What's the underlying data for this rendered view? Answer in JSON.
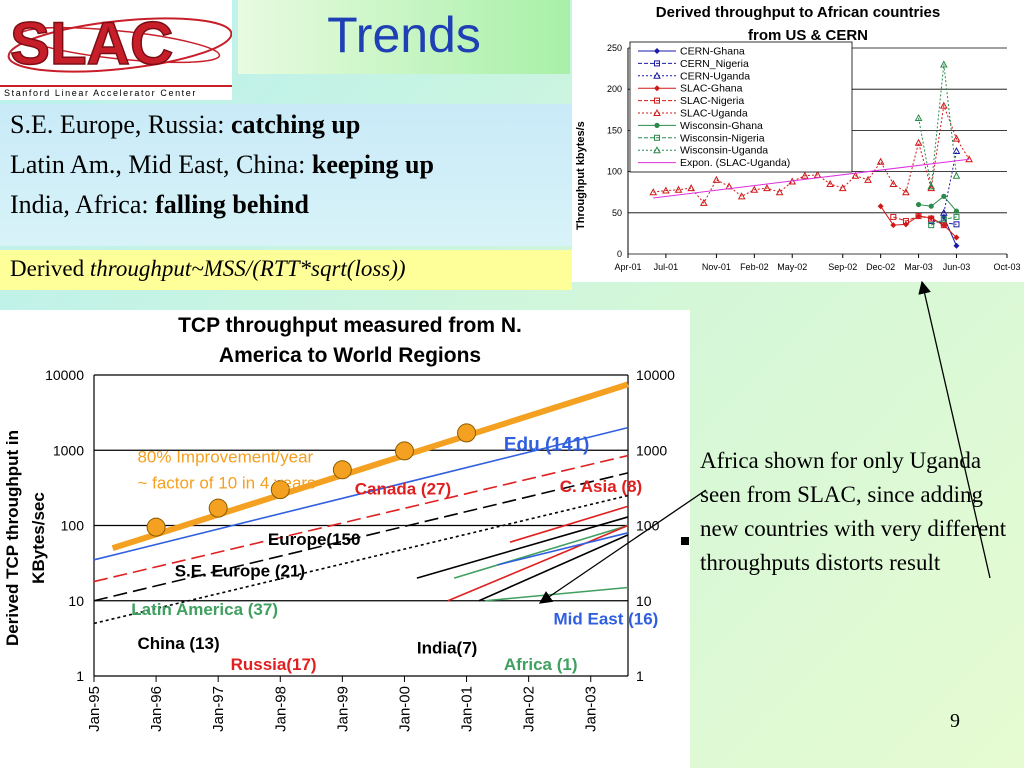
{
  "logo": {
    "text": "SLAC",
    "subtitle": "Stanford Linear Accelerator Center"
  },
  "slide": {
    "title": "Trends",
    "bullets": [
      {
        "prefix": "S.E. Europe, Russia: ",
        "emph": "catching up"
      },
      {
        "prefix": "Latin Am., Mid East, China: ",
        "emph": "keeping up"
      },
      {
        "prefix": "India, Africa: ",
        "emph": "falling behind"
      }
    ],
    "formula_prefix": "Derived ",
    "formula": "throughput~MSS/(RTT*sqrt(loss))",
    "note": "Africa shown for only Uganda seen from SLAC, since adding new countries with very different throughputs distorts result",
    "page_number": "9"
  },
  "colors": {
    "title": "#1f3fb5",
    "slac_red": "#c81e2a",
    "formula_bg": "#ffff99"
  },
  "chart_data": [
    {
      "type": "line",
      "title": "Derived throughput to African countries from US & CERN",
      "ylabel": "Throughput kbytes/s",
      "xlabel": "",
      "x_ticks": [
        "Apr-01",
        "Jul-01",
        "Nov-01",
        "Feb-02",
        "May-02",
        "Sep-02",
        "Dec-02",
        "Mar-03",
        "Jun-03",
        "Oct-03"
      ],
      "y_ticks": [
        0,
        50,
        100,
        150,
        200,
        250
      ],
      "ylim": [
        0,
        250
      ],
      "legend_position": "top-left",
      "grid": true,
      "series": [
        {
          "name": "CERN-Ghana",
          "color": "#1a1aa8",
          "marker": "diamond",
          "dash": "solid",
          "points": [
            [
              "May-03",
              45
            ],
            [
              "Jun-03",
              10
            ]
          ]
        },
        {
          "name": "CERN_Nigeria",
          "color": "#1a1aa8",
          "marker": "square",
          "dash": "dashed",
          "points": [
            [
              "Apr-03",
              40
            ],
            [
              "May-03",
              38
            ],
            [
              "Jun-03",
              36
            ]
          ]
        },
        {
          "name": "CERN-Uganda",
          "color": "#1a1aa8",
          "marker": "triangle",
          "dash": "dotted",
          "points": [
            [
              "May-03",
              50
            ],
            [
              "Jun-03",
              125
            ]
          ]
        },
        {
          "name": "SLAC-Ghana",
          "color": "#d01818",
          "marker": "diamond",
          "dash": "solid",
          "points": [
            [
              "Dec-02",
              58
            ],
            [
              "Jan-03",
              35
            ],
            [
              "Feb-03",
              36
            ],
            [
              "Mar-03",
              46
            ],
            [
              "Apr-03",
              44
            ],
            [
              "May-03",
              35
            ],
            [
              "Jun-03",
              20
            ]
          ]
        },
        {
          "name": "SLAC-Nigeria",
          "color": "#d01818",
          "marker": "square",
          "dash": "dashed",
          "points": [
            [
              "Jan-03",
              45
            ],
            [
              "Feb-03",
              40
            ],
            [
              "Mar-03",
              46
            ],
            [
              "Apr-03",
              43
            ],
            [
              "May-03",
              35
            ]
          ]
        },
        {
          "name": "SLAC-Uganda",
          "color": "#d01818",
          "marker": "triangle",
          "dash": "dotted",
          "points": [
            [
              "Jun-01",
              75
            ],
            [
              "Jul-01",
              77
            ],
            [
              "Aug-01",
              78
            ],
            [
              "Sep-01",
              80
            ],
            [
              "Oct-01",
              62
            ],
            [
              "Nov-01",
              90
            ],
            [
              "Dec-01",
              82
            ],
            [
              "Jan-02",
              70
            ],
            [
              "Feb-02",
              78
            ],
            [
              "Mar-02",
              80
            ],
            [
              "Apr-02",
              75
            ],
            [
              "May-02",
              88
            ],
            [
              "Jun-02",
              95
            ],
            [
              "Jul-02",
              96
            ],
            [
              "Aug-02",
              85
            ],
            [
              "Sep-02",
              80
            ],
            [
              "Oct-02",
              95
            ],
            [
              "Nov-02",
              90
            ],
            [
              "Dec-02",
              112
            ],
            [
              "Jan-03",
              85
            ],
            [
              "Feb-03",
              75
            ],
            [
              "Mar-03",
              135
            ],
            [
              "Apr-03",
              80
            ],
            [
              "May-03",
              180
            ],
            [
              "Jun-03",
              140
            ],
            [
              "Jul-03",
              115
            ]
          ]
        },
        {
          "name": "Wisconsin-Ghana",
          "color": "#2a8a4a",
          "marker": "circle",
          "dash": "solid",
          "points": [
            [
              "Mar-03",
              60
            ],
            [
              "Apr-03",
              58
            ],
            [
              "May-03",
              70
            ],
            [
              "Jun-03",
              52
            ]
          ]
        },
        {
          "name": "Wisconsin-Nigeria",
          "color": "#2a8a4a",
          "marker": "square",
          "dash": "dashed",
          "points": [
            [
              "Apr-03",
              35
            ],
            [
              "May-03",
              42
            ],
            [
              "Jun-03",
              45
            ]
          ]
        },
        {
          "name": "Wisconsin-Uganda",
          "color": "#2a8a4a",
          "marker": "triangle",
          "dash": "dotted",
          "points": [
            [
              "Mar-03",
              165
            ],
            [
              "Apr-03",
              82
            ],
            [
              "May-03",
              230
            ],
            [
              "Jun-03",
              95
            ]
          ]
        },
        {
          "name": "Expon. (SLAC-Uganda)",
          "color": "#e030e0",
          "marker": "none",
          "dash": "solid",
          "points": [
            [
              "Jun-01",
              68
            ],
            [
              "Jul-03",
              115
            ]
          ]
        }
      ]
    },
    {
      "type": "line",
      "title": "TCP throughput measured from N. America to World Regions",
      "ylabel": "Derived TCP throughput in KBytes/sec",
      "xlabel": "",
      "y_scale": "log",
      "ylim": [
        1,
        10000
      ],
      "y_ticks": [
        "1",
        "10",
        "100",
        "1000",
        "10000"
      ],
      "x_ticks": [
        "Jan-95",
        "Jan-96",
        "Jan-97",
        "Jan-98",
        "Jan-99",
        "Jan-00",
        "Jan-01",
        "Jan-02",
        "Jan-03"
      ],
      "xlim": [
        1995,
        2003.6
      ],
      "grid": true,
      "improvement_annotation": [
        "80% Improvement/year",
        "~ factor of 10 in 4 years"
      ],
      "series": [
        {
          "name": "Edu (141)",
          "color": "#3060e0",
          "style": "solid",
          "points": [
            [
              1995,
              35
            ],
            [
              2003.6,
              2000
            ]
          ]
        },
        {
          "name": "Canada (27)",
          "color": "#e02020",
          "style": "dashed",
          "points": [
            [
              1995,
              18
            ],
            [
              2003.6,
              850
            ]
          ]
        },
        {
          "name": "Europe(150",
          "color": "#000000",
          "style": "dashed",
          "points": [
            [
              1995,
              10
            ],
            [
              2003.6,
              500
            ]
          ]
        },
        {
          "name": "S.E. Europe (21)",
          "color": "#000000",
          "style": "dotted",
          "points": [
            [
              1995,
              5
            ],
            [
              2003.6,
              250
            ]
          ]
        },
        {
          "name": "C. Asia (8)",
          "color": "#e02020",
          "style": "solid",
          "points": [
            [
              2001.7,
              60
            ],
            [
              2003.6,
              180
            ]
          ]
        },
        {
          "name": "Latin America (37)",
          "color": "#40a060",
          "style": "solid",
          "points": [
            [
              2000.8,
              20
            ],
            [
              2003.6,
              100
            ]
          ]
        },
        {
          "name": "China (13)",
          "color": "#000000",
          "style": "solid",
          "points": [
            [
              2000.2,
              20
            ],
            [
              2003.6,
              130
            ]
          ]
        },
        {
          "name": "Russia(17)",
          "color": "#e02020",
          "style": "solid",
          "points": [
            [
              2000.7,
              10
            ],
            [
              2003.6,
              100
            ]
          ]
        },
        {
          "name": "India(7)",
          "color": "#000000",
          "style": "solid",
          "points": [
            [
              2001.2,
              10
            ],
            [
              2003.6,
              75
            ]
          ]
        },
        {
          "name": "Mid East (16)",
          "color": "#3060e0",
          "style": "solid",
          "points": [
            [
              2001.5,
              30
            ],
            [
              2003.6,
              80
            ]
          ]
        },
        {
          "name": "Africa (1)",
          "color": "#40a060",
          "style": "solid",
          "points": [
            [
              2001.3,
              10
            ],
            [
              2003.6,
              15
            ]
          ]
        },
        {
          "name": "Improvement trend",
          "color": "#f4a020",
          "style": "thick",
          "points": [
            [
              1995.3,
              50
            ],
            [
              2003.6,
              7500
            ]
          ]
        }
      ],
      "highlight_points": [
        {
          "x": 1996,
          "y": 95
        },
        {
          "x": 1997,
          "y": 170
        },
        {
          "x": 1998,
          "y": 300
        },
        {
          "x": 1999,
          "y": 550
        },
        {
          "x": 2000,
          "y": 980
        },
        {
          "x": 2001,
          "y": 1700
        }
      ],
      "labels": [
        {
          "series": "Edu (141)",
          "x": 2001.6,
          "y": 1000
        },
        {
          "series": "Canada (27)",
          "x": 1999.2,
          "y": 260
        },
        {
          "series": "C. Asia (8)",
          "x": 2002.5,
          "y": 280
        },
        {
          "series": "Europe(150",
          "x": 1997.8,
          "y": 55
        },
        {
          "series": "S.E. Europe (21)",
          "x": 1996.3,
          "y": 21
        },
        {
          "series": "Latin America (37)",
          "x": 1995.6,
          "y": 6.5
        },
        {
          "series": "China (13)",
          "x": 1995.7,
          "y": 2.3
        },
        {
          "series": "Russia(17)",
          "x": 1997.2,
          "y": 1.2
        },
        {
          "series": "India(7)",
          "x": 2000.2,
          "y": 2.0
        },
        {
          "series": "Africa (1)",
          "x": 2001.6,
          "y": 1.2
        },
        {
          "series": "Mid East (16)",
          "x": 2002.4,
          "y": 4.8
        }
      ]
    }
  ]
}
